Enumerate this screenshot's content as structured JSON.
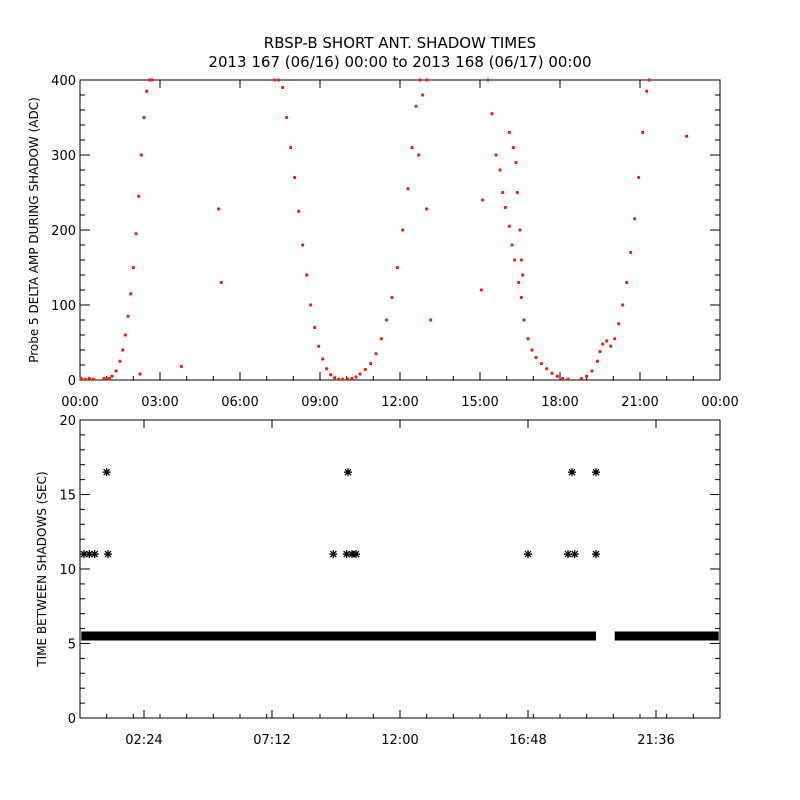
{
  "title": {
    "line1": "RBSP-B SHORT ANT. SHADOW TIMES",
    "line2": "2013 167 (06/16) 00:00 to 2013 168 (06/17) 00:00"
  },
  "colors": {
    "top_points": "#e8210f",
    "bottom_points": "#000000",
    "axes": "#000000",
    "background": "#ffffff"
  },
  "chart_data": [
    {
      "type": "scatter",
      "ylabel": "Probe 5 DELTA AMP DURING SHADOW (ADC)",
      "xlabel": "",
      "xlim": [
        0,
        24
      ],
      "ylim": [
        0,
        400
      ],
      "x_unit": "hours of day",
      "x_ticks": [
        0,
        3,
        6,
        9,
        12,
        15,
        18,
        21,
        24
      ],
      "x_tick_labels": [
        "00:00",
        "03:00",
        "06:00",
        "09:00",
        "12:00",
        "15:00",
        "18:00",
        "21:00",
        "00:00"
      ],
      "y_ticks": [
        0,
        100,
        200,
        300,
        400
      ],
      "y_tick_labels": [
        "0",
        "100",
        "200",
        "300",
        "400"
      ],
      "grid": false,
      "series": [
        {
          "marker": "small dot",
          "points": [
            [
              0.05,
              2
            ],
            [
              0.2,
              1
            ],
            [
              0.35,
              2
            ],
            [
              0.5,
              1
            ],
            [
              0.9,
              2
            ],
            [
              1.0,
              1
            ],
            [
              1.1,
              2
            ],
            [
              1.2,
              5
            ],
            [
              1.35,
              12
            ],
            [
              1.5,
              25
            ],
            [
              1.6,
              40
            ],
            [
              1.7,
              60
            ],
            [
              1.8,
              85
            ],
            [
              1.9,
              115
            ],
            [
              2.0,
              150
            ],
            [
              2.1,
              195
            ],
            [
              2.2,
              245
            ],
            [
              2.3,
              300
            ],
            [
              2.4,
              350
            ],
            [
              2.5,
              385
            ],
            [
              2.6,
              400
            ],
            [
              2.7,
              400
            ],
            [
              2.25,
              8
            ],
            [
              3.8,
              18
            ],
            [
              5.2,
              228
            ],
            [
              5.3,
              130
            ],
            [
              7.3,
              400
            ],
            [
              7.45,
              400
            ],
            [
              7.6,
              390
            ],
            [
              7.75,
              350
            ],
            [
              7.9,
              310
            ],
            [
              8.05,
              270
            ],
            [
              8.2,
              225
            ],
            [
              8.35,
              180
            ],
            [
              8.5,
              140
            ],
            [
              8.65,
              100
            ],
            [
              8.8,
              70
            ],
            [
              8.95,
              45
            ],
            [
              9.1,
              28
            ],
            [
              9.25,
              15
            ],
            [
              9.4,
              7
            ],
            [
              9.55,
              3
            ],
            [
              9.7,
              1
            ],
            [
              9.85,
              1
            ],
            [
              10.05,
              1
            ],
            [
              10.2,
              2
            ],
            [
              10.35,
              4
            ],
            [
              10.5,
              8
            ],
            [
              10.7,
              14
            ],
            [
              10.9,
              22
            ],
            [
              11.1,
              35
            ],
            [
              11.3,
              55
            ],
            [
              11.5,
              80
            ],
            [
              11.7,
              110
            ],
            [
              11.9,
              150
            ],
            [
              12.1,
              200
            ],
            [
              12.3,
              255
            ],
            [
              12.45,
              310
            ],
            [
              12.6,
              365
            ],
            [
              12.75,
              400
            ],
            [
              12.85,
              380
            ],
            [
              13.0,
              400
            ],
            [
              12.7,
              300
            ],
            [
              13.15,
              80
            ],
            [
              13.0,
              228
            ],
            [
              15.05,
              120
            ],
            [
              15.1,
              240
            ],
            [
              15.3,
              400
            ],
            [
              15.45,
              355
            ],
            [
              15.6,
              300
            ],
            [
              15.75,
              280
            ],
            [
              15.85,
              250
            ],
            [
              15.95,
              230
            ],
            [
              16.1,
              205
            ],
            [
              16.2,
              180
            ],
            [
              16.3,
              160
            ],
            [
              16.45,
              130
            ],
            [
              16.55,
              110
            ],
            [
              16.1,
              330
            ],
            [
              16.25,
              310
            ],
            [
              16.35,
              290
            ],
            [
              16.4,
              250
            ],
            [
              16.5,
              200
            ],
            [
              16.55,
              160
            ],
            [
              16.6,
              140
            ],
            [
              16.65,
              80
            ],
            [
              16.8,
              55
            ],
            [
              16.95,
              40
            ],
            [
              17.1,
              30
            ],
            [
              17.3,
              22
            ],
            [
              17.5,
              15
            ],
            [
              17.7,
              9
            ],
            [
              17.9,
              5
            ],
            [
              18.1,
              2
            ],
            [
              18.3,
              1
            ],
            [
              18.8,
              2
            ],
            [
              19.0,
              5
            ],
            [
              19.2,
              12
            ],
            [
              19.4,
              25
            ],
            [
              19.5,
              38
            ],
            [
              19.6,
              48
            ],
            [
              19.75,
              52
            ],
            [
              19.9,
              45
            ],
            [
              20.05,
              55
            ],
            [
              20.2,
              75
            ],
            [
              20.35,
              100
            ],
            [
              20.5,
              130
            ],
            [
              20.65,
              170
            ],
            [
              20.8,
              215
            ],
            [
              20.95,
              270
            ],
            [
              21.1,
              330
            ],
            [
              21.25,
              385
            ],
            [
              21.35,
              400
            ],
            [
              22.75,
              325
            ]
          ]
        }
      ]
    },
    {
      "type": "scatter",
      "ylabel": "TIME BETWEEN SHADOWS (SEC)",
      "xlabel": "",
      "xlim": [
        0,
        24
      ],
      "ylim": [
        0,
        20
      ],
      "x_unit": "hours of day",
      "x_ticks": [
        2.4,
        7.2,
        12.0,
        16.8,
        21.6
      ],
      "x_tick_labels": [
        "02:24",
        "07:12",
        "12:00",
        "16:48",
        "21:36"
      ],
      "y_ticks": [
        0,
        5,
        10,
        15,
        20
      ],
      "y_tick_labels": [
        "0",
        "5",
        "10",
        "15",
        "20"
      ],
      "grid": false,
      "series": [
        {
          "marker": "asterisk",
          "baseline_value": 5.5,
          "baseline_ranges": [
            [
              0.05,
              19.35
            ],
            [
              20.05,
              23.95
            ]
          ],
          "points": [
            [
              0.15,
              11
            ],
            [
              0.35,
              11
            ],
            [
              0.55,
              11
            ],
            [
              1.0,
              16.5
            ],
            [
              1.05,
              11
            ],
            [
              9.5,
              11
            ],
            [
              10.0,
              11
            ],
            [
              10.05,
              16.5
            ],
            [
              10.2,
              11
            ],
            [
              10.35,
              11
            ],
            [
              16.8,
              11
            ],
            [
              18.3,
              11
            ],
            [
              18.45,
              16.5
            ],
            [
              18.55,
              11
            ],
            [
              19.35,
              16.5
            ],
            [
              19.35,
              11
            ]
          ]
        }
      ]
    }
  ]
}
